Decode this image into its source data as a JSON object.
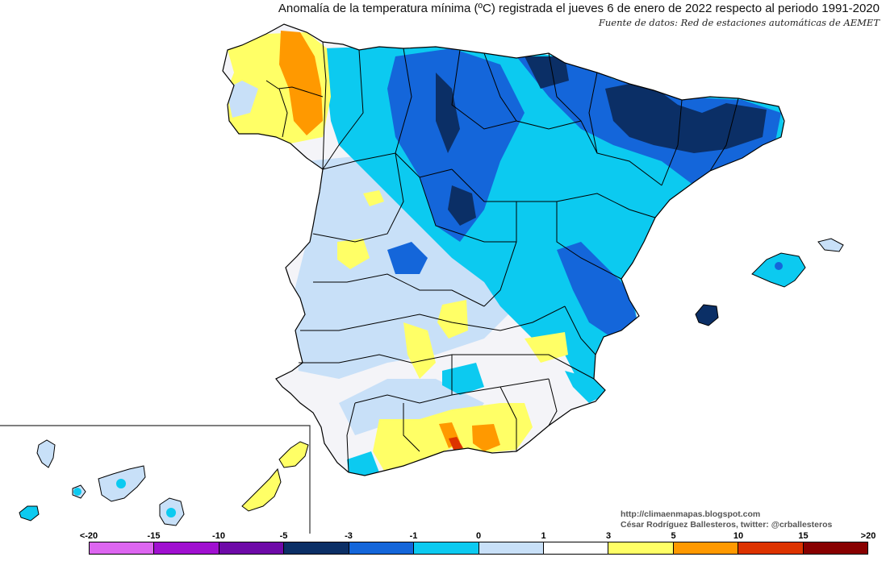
{
  "title": "Anomalía de la temperatura mínima (ºC) registrada el jueves 6 de enero de 2022 respecto al periodo 1991-2020",
  "subtitle": "Fuente de datos: Red de estaciones automáticas de AEMET",
  "credits": {
    "url": "http://climaenmapas.blogspot.com",
    "author": "César Rodríguez Ballesteros, twitter: @crballesteros"
  },
  "legend": {
    "labels": [
      "<-20",
      "-15",
      "-10",
      "-5",
      "-3",
      "-1",
      "0",
      "1",
      "3",
      "5",
      "10",
      "15",
      ">20"
    ],
    "colors": [
      "#dd66f0",
      "#a010d0",
      "#6e0aa8",
      "#0b2f66",
      "#1466da",
      "#0ccaf0",
      "#c8e0f8",
      "#ffffff",
      "#ffff66",
      "#ff9900",
      "#dd3300",
      "#880000",
      "#6e3b00"
    ]
  },
  "map_palette": {
    "very_cold": "#0b2f66",
    "cold": "#1466da",
    "cool": "#0ccaf0",
    "slightly_cool": "#c8e0f8",
    "neutral": "#f4f4f8",
    "warm": "#ffff66",
    "hot": "#ff9900",
    "very_hot": "#dd3300",
    "extreme_cold": "#a010d0"
  }
}
